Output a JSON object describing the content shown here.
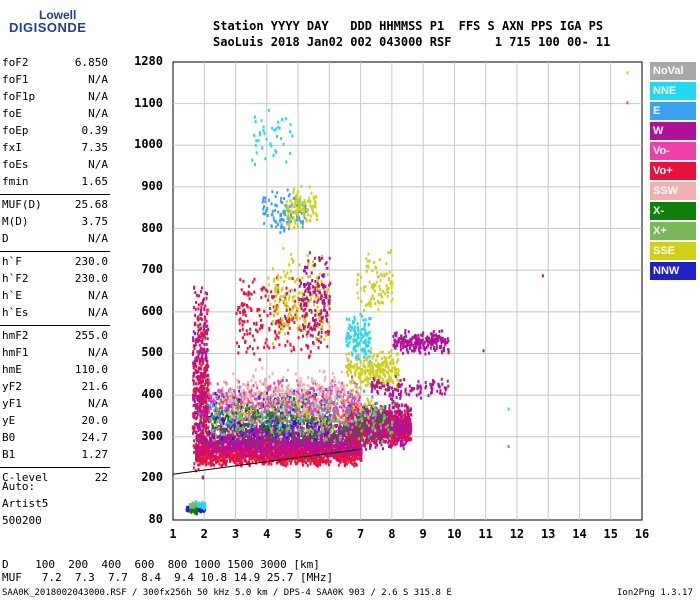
{
  "logo": {
    "line1": "Lowell",
    "line2": "DIGISONDE"
  },
  "header": {
    "line1": "Station YYYY DAY   DDD HHMMSS P1  FFS S AXN PPS IGA PS",
    "line2": "SaoLuis 2018 Jan02 002 043000 RSF      1 715 100 00- 11"
  },
  "parameters": [
    {
      "name": "foF2",
      "value": "6.850"
    },
    {
      "name": "foF1",
      "value": "N/A"
    },
    {
      "name": "foF1p",
      "value": "N/A"
    },
    {
      "name": "foE",
      "value": "N/A"
    },
    {
      "name": "foEp",
      "value": "0.39"
    },
    {
      "name": "fxI",
      "value": "7.35"
    },
    {
      "name": "foEs",
      "value": "N/A"
    },
    {
      "name": "fmin",
      "value": "1.65"
    },
    {
      "name": "MUF(D)",
      "value": "25.68"
    },
    {
      "name": "M(D)",
      "value": "3.75"
    },
    {
      "name": "D",
      "value": "N/A"
    },
    {
      "name": "h`F",
      "value": "230.0"
    },
    {
      "name": "h`F2",
      "value": "230.0"
    },
    {
      "name": "h`E",
      "value": "N/A"
    },
    {
      "name": "h`Es",
      "value": "N/A"
    },
    {
      "name": "hmF2",
      "value": "255.0"
    },
    {
      "name": "hmF1",
      "value": "N/A"
    },
    {
      "name": "hmE",
      "value": "110.0"
    },
    {
      "name": "yF2",
      "value": "21.6"
    },
    {
      "name": "yF1",
      "value": "N/A"
    },
    {
      "name": "yE",
      "value": "20.0"
    },
    {
      "name": "B0",
      "value": "24.7"
    },
    {
      "name": "B1",
      "value": "1.27"
    },
    {
      "name": "C-level",
      "value": "22"
    }
  ],
  "auto": [
    "Auto:",
    "Artist5",
    "500200"
  ],
  "legend": [
    {
      "label": "NoVal",
      "color": "#a8a8a8"
    },
    {
      "label": "NNE",
      "color": "#22d8f0"
    },
    {
      "label": "E",
      "color": "#3aa0f0"
    },
    {
      "label": "W",
      "color": "#b0119a"
    },
    {
      "label": "Vo-",
      "color": "#f040a8"
    },
    {
      "label": "Vo+",
      "color": "#e8103c"
    },
    {
      "label": "SSW",
      "color": "#f0b0b0"
    },
    {
      "label": "X-",
      "color": "#10800c"
    },
    {
      "label": "X+",
      "color": "#78b858"
    },
    {
      "label": "SSE",
      "color": "#d0d018"
    },
    {
      "label": "NNW",
      "color": "#2020c8"
    }
  ],
  "footer": {
    "d_row": "D    100  200  400  600  800 1000 1500 3000 [km]",
    "muf_row": "MUF   7.2  7.3  7.7  8.4  9.4 10.8 14.9 25.7 [MHz]",
    "file_info": "SAA0K_2018002043000.RSF / 300fx256h 50 kHz 5.0 km / DPS-4 SAA0K 903 / 2.6 S 315.8 E",
    "version": "Ion2Png 1.3.17"
  },
  "chart_data": {
    "type": "scatter",
    "x_ticks": [
      "1",
      "2",
      "3",
      "4",
      "5",
      "6",
      "7",
      "8",
      "9",
      "10",
      "11",
      "12",
      "13",
      "14",
      "15",
      "16"
    ],
    "y_ticks": [
      "80",
      "200",
      "300",
      "400",
      "500",
      "600",
      "700",
      "800",
      "900",
      "1000",
      "1100",
      "1280"
    ],
    "xlim": [
      1,
      16
    ],
    "ylim": [
      80,
      1280
    ],
    "grid": true,
    "legend_position": "right",
    "clusters": [
      {
        "x": [
          1.7,
          7.0
        ],
        "y": [
          230,
          300
        ],
        "n": 1600,
        "series": "Vo+"
      },
      {
        "x": [
          1.7,
          7.0
        ],
        "y": [
          250,
          330
        ],
        "n": 900,
        "series": "W"
      },
      {
        "x": [
          2.5,
          8.6
        ],
        "y": [
          270,
          360
        ],
        "n": 900,
        "series": "W"
      },
      {
        "x": [
          6.5,
          8.6
        ],
        "y": [
          280,
          390
        ],
        "n": 600,
        "series": "Vo+"
      },
      {
        "x": [
          6.5,
          8.6
        ],
        "y": [
          280,
          390
        ],
        "n": 400,
        "series": "W"
      },
      {
        "x": [
          1.8,
          6.0
        ],
        "y": [
          290,
          420
        ],
        "n": 350,
        "series": "NNW"
      },
      {
        "x": [
          1.8,
          7.5
        ],
        "y": [
          300,
          420
        ],
        "n": 300,
        "series": "E"
      },
      {
        "x": [
          1.8,
          7.5
        ],
        "y": [
          300,
          420
        ],
        "n": 250,
        "series": "SSE"
      },
      {
        "x": [
          2.0,
          8.0
        ],
        "y": [
          280,
          400
        ],
        "n": 200,
        "series": "X-"
      },
      {
        "x": [
          2.0,
          8.0
        ],
        "y": [
          280,
          400
        ],
        "n": 200,
        "series": "X+"
      },
      {
        "x": [
          1.8,
          7.0
        ],
        "y": [
          330,
          450
        ],
        "n": 400,
        "series": "Vo-"
      },
      {
        "x": [
          2.5,
          7.0
        ],
        "y": [
          350,
          470
        ],
        "n": 220,
        "series": "SSW"
      },
      {
        "x": [
          6.5,
          8.2
        ],
        "y": [
          410,
          520
        ],
        "n": 260,
        "series": "SSE"
      },
      {
        "x": [
          7.3,
          9.8
        ],
        "y": [
          390,
          450
        ],
        "n": 120,
        "series": "W"
      },
      {
        "x": [
          8.0,
          9.8
        ],
        "y": [
          500,
          560
        ],
        "n": 220,
        "series": "W"
      },
      {
        "x": [
          6.5,
          7.3
        ],
        "y": [
          480,
          600
        ],
        "n": 120,
        "series": "NNE"
      },
      {
        "x": [
          3.0,
          6.0
        ],
        "y": [
          480,
          700
        ],
        "n": 260,
        "series": "Vo+"
      },
      {
        "x": [
          4.0,
          6.0
        ],
        "y": [
          520,
          760
        ],
        "n": 200,
        "series": "SSE"
      },
      {
        "x": [
          5.0,
          6.0
        ],
        "y": [
          520,
          760
        ],
        "n": 120,
        "series": "W"
      },
      {
        "x": [
          6.8,
          8.0
        ],
        "y": [
          580,
          760
        ],
        "n": 90,
        "series": "SSE"
      },
      {
        "x": [
          3.8,
          5.3
        ],
        "y": [
          790,
          900
        ],
        "n": 120,
        "series": "E"
      },
      {
        "x": [
          4.6,
          5.6
        ],
        "y": [
          800,
          910
        ],
        "n": 100,
        "series": "SSE"
      },
      {
        "x": [
          3.5,
          4.8
        ],
        "y": [
          950,
          1100
        ],
        "n": 40,
        "series": "NNE"
      },
      {
        "x": [
          1.6,
          2.1
        ],
        "y": [
          200,
          680
        ],
        "n": 300,
        "series": "Vo+"
      },
      {
        "x": [
          1.6,
          2.1
        ],
        "y": [
          200,
          680
        ],
        "n": 160,
        "series": "W"
      },
      {
        "x": [
          1.4,
          2.0
        ],
        "y": [
          105,
          125
        ],
        "n": 60,
        "series": "NNW"
      },
      {
        "x": [
          1.6,
          2.0
        ],
        "y": [
          115,
          140
        ],
        "n": 50,
        "series": "NNE"
      },
      {
        "x": [
          1.5,
          1.7
        ],
        "y": [
          115,
          135
        ],
        "n": 20,
        "series": "X+"
      },
      {
        "x": [
          1.5,
          1.8
        ],
        "y": [
          100,
          120
        ],
        "n": 20,
        "series": "X-"
      }
    ],
    "isolated_points": [
      {
        "x": 15.5,
        "y": 1240,
        "series": "SSE"
      },
      {
        "x": 15.5,
        "y": 1110,
        "series": "Vo-"
      },
      {
        "x": 12.8,
        "y": 690,
        "series": "Vo+"
      },
      {
        "x": 11.7,
        "y": 370,
        "series": "NNE"
      },
      {
        "x": 11.7,
        "y": 280,
        "series": "E"
      },
      {
        "x": 10.9,
        "y": 510,
        "series": "W"
      }
    ],
    "trace": [
      {
        "x": 1.0,
        "y": 210
      },
      {
        "x": 7.0,
        "y": 270
      }
    ]
  }
}
